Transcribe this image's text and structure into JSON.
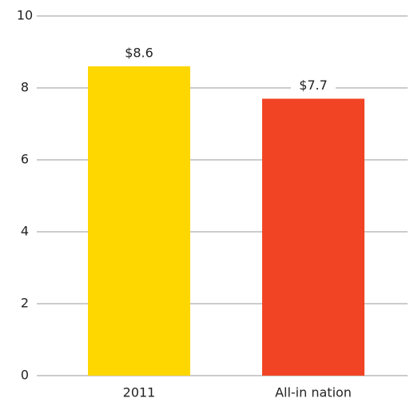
{
  "chart_data": {
    "type": "bar",
    "categories": [
      "2011",
      "All-in nation"
    ],
    "values": [
      8.6,
      7.7
    ],
    "value_labels": [
      "$8.6",
      "$7.7"
    ],
    "colors": [
      "#fed700",
      "#f04424"
    ],
    "ylim": [
      0,
      10
    ],
    "yticks": [
      0,
      2,
      4,
      6,
      8,
      10
    ],
    "grid": true
  }
}
